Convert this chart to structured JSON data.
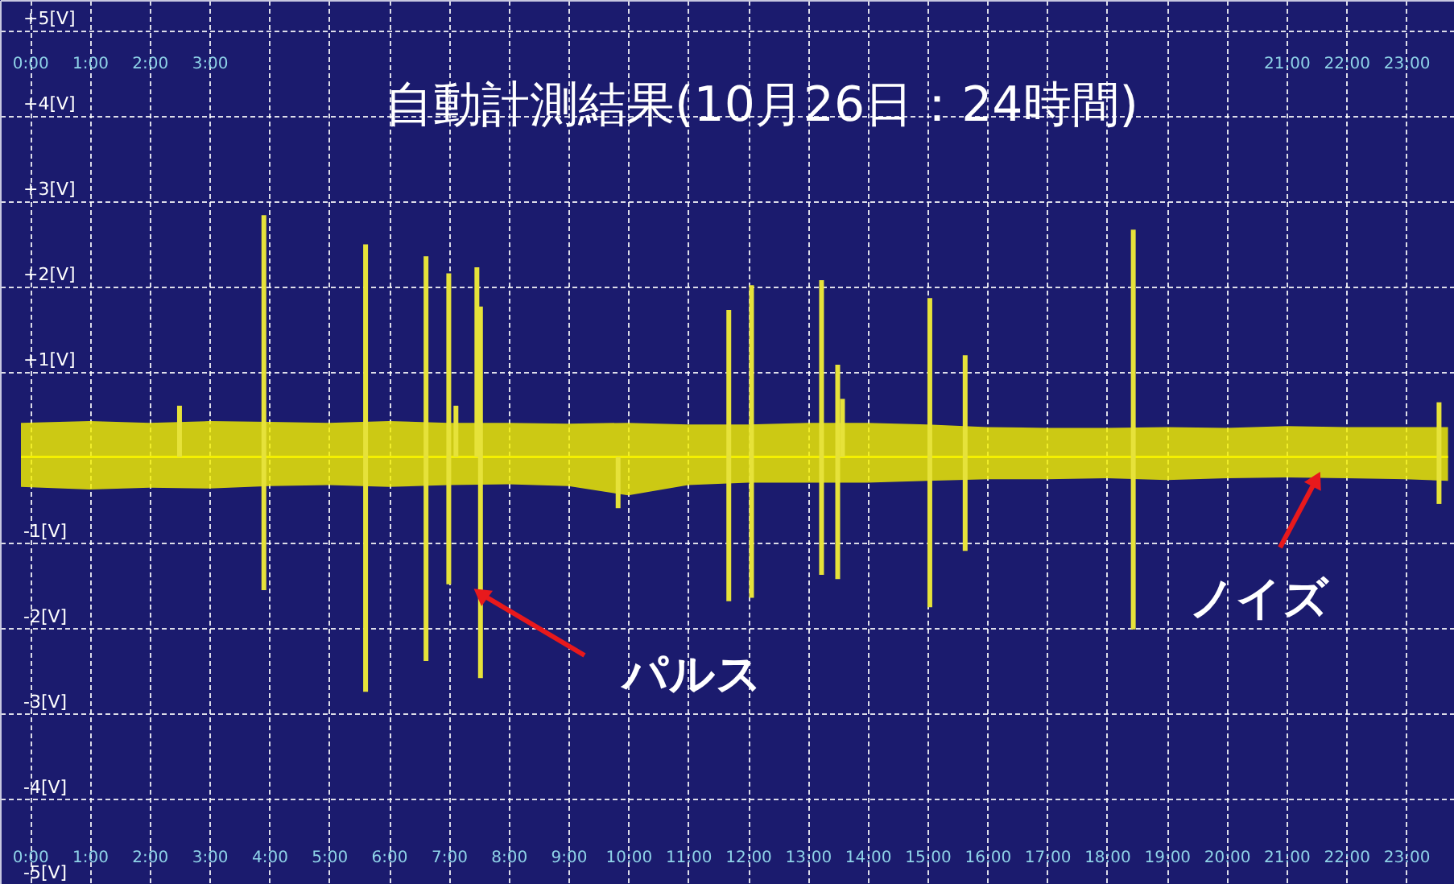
{
  "chart_data": {
    "type": "line",
    "title": "自動計測結果(10月26日：24時間)",
    "xlim": [
      -0.5,
      23.8
    ],
    "ylim": [
      -5,
      5.35
    ],
    "x2lim": [
      -0.5,
      23.8
    ],
    "xticks": [
      {
        "value": 0,
        "label": "0:00"
      },
      {
        "value": 1,
        "label": "1:00"
      },
      {
        "value": 2,
        "label": "2:00"
      },
      {
        "value": 3,
        "label": "3:00"
      },
      {
        "value": 4,
        "label": "4:00"
      },
      {
        "value": 5,
        "label": "5:00"
      },
      {
        "value": 6,
        "label": "6:00"
      },
      {
        "value": 7,
        "label": "7:00"
      },
      {
        "value": 8,
        "label": "8:00"
      },
      {
        "value": 9,
        "label": "9:00"
      },
      {
        "value": 10,
        "label": "10:00"
      },
      {
        "value": 11,
        "label": "11:00"
      },
      {
        "value": 12,
        "label": "12:00"
      },
      {
        "value": 13,
        "label": "13:00"
      },
      {
        "value": 14,
        "label": "14:00"
      },
      {
        "value": 15,
        "label": "15:00"
      },
      {
        "value": 16,
        "label": "16:00"
      },
      {
        "value": 17,
        "label": "17:00"
      },
      {
        "value": 18,
        "label": "18:00"
      },
      {
        "value": 19,
        "label": "19:00"
      },
      {
        "value": 20,
        "label": "20:00"
      },
      {
        "value": 21,
        "label": "21:00"
      },
      {
        "value": 22,
        "label": "22:00"
      },
      {
        "value": 23,
        "label": "23:00"
      }
    ],
    "x2ticks": [
      {
        "value": 0,
        "label": "0:00"
      },
      {
        "value": 1,
        "label": "1:00"
      },
      {
        "value": 2,
        "label": "2:00"
      },
      {
        "value": 3,
        "label": "3:00"
      },
      {
        "value": 21,
        "label": "21:00"
      },
      {
        "value": 22,
        "label": "22:00"
      },
      {
        "value": 23,
        "label": "23:00"
      }
    ],
    "yticks": [
      {
        "value": 5,
        "label": "+5[V]"
      },
      {
        "value": 4,
        "label": "+4[V]"
      },
      {
        "value": 3,
        "label": "+3[V]"
      },
      {
        "value": 2,
        "label": "+2[V]"
      },
      {
        "value": 1,
        "label": "+1[V]"
      },
      {
        "value": -1,
        "label": "-1[V]"
      },
      {
        "value": -2,
        "label": "-2[V]"
      },
      {
        "value": -3,
        "label": "-3[V]"
      },
      {
        "value": -4,
        "label": "-4[V]"
      },
      {
        "value": -5,
        "label": "-5[V]"
      }
    ],
    "grid": true,
    "marker": "none",
    "series": [
      {
        "color": "#f4f000",
        "x": [
          -0.15,
          1,
          2,
          3,
          4,
          5,
          6,
          7,
          8,
          9,
          10,
          11,
          12,
          13,
          14,
          15,
          16,
          17,
          18,
          19,
          20,
          21,
          22,
          23,
          23.7
        ],
        "values": [
          0,
          0,
          0,
          0,
          0,
          0,
          0,
          0,
          0,
          0,
          0,
          0,
          0,
          0,
          0,
          0,
          0,
          0,
          0,
          0,
          0,
          0,
          0,
          0,
          0
        ],
        "lower": [
          -0.35,
          -0.38,
          -0.36,
          -0.37,
          -0.34,
          -0.33,
          -0.35,
          -0.33,
          -0.32,
          -0.34,
          -0.45,
          -0.33,
          -0.3,
          -0.3,
          -0.3,
          -0.28,
          -0.26,
          -0.26,
          -0.25,
          -0.27,
          -0.25,
          -0.24,
          -0.25,
          -0.26,
          -0.28
        ],
        "upper": [
          0.4,
          0.42,
          0.4,
          0.42,
          0.41,
          0.4,
          0.42,
          0.4,
          0.4,
          0.39,
          0.4,
          0.38,
          0.38,
          0.4,
          0.4,
          0.38,
          0.35,
          0.34,
          0.34,
          0.35,
          0.34,
          0.36,
          0.35,
          0.35,
          0.35
        ]
      },
      {
        "type": "bar",
        "color": "#e6e23a",
        "x": [
          2.5,
          3.91,
          5.61,
          6.62,
          7.0,
          7.12,
          7.47,
          7.53,
          9.83,
          11.68,
          12.06,
          13.23,
          13.5,
          13.58,
          15.04,
          15.63,
          18.44,
          23.55
        ],
        "base": [
          0,
          -1.56,
          -2.75,
          -2.39,
          -1.49,
          0,
          0,
          -2.59,
          -0.6,
          -1.69,
          -1.65,
          -1.38,
          -1.43,
          0,
          -1.76,
          -1.1,
          -2.02,
          -0.55
        ],
        "values": [
          0.6,
          4.39,
          5.24,
          4.74,
          3.64,
          0.6,
          2.22,
          4.35,
          0.6,
          3.41,
          3.66,
          3.45,
          2.51,
          0.68,
          3.62,
          2.29,
          4.68,
          1.19
        ]
      }
    ],
    "annotations": [
      {
        "text": "パルス",
        "x": 7.53,
        "y": -1.6
      },
      {
        "text": "ノイズ",
        "x": 21.5,
        "y": -0.26
      }
    ]
  }
}
